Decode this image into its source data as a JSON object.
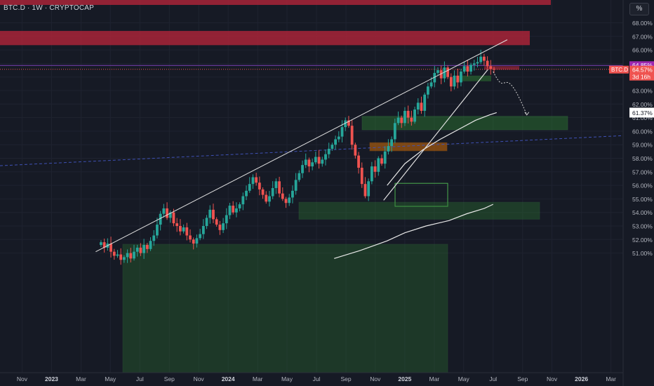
{
  "header": {
    "symbol_label": "BTC.D · 1W · CRYPTOCAP",
    "scale_button": "%"
  },
  "colors": {
    "up": "#26a69a",
    "down": "#ef5350",
    "zone_red": "#b2243a",
    "zone_green": "#2e7d32",
    "zone_orange": "#f57c00",
    "blue_line": "#3f51b5",
    "background": "#161a25"
  },
  "chart_data": {
    "type": "candlestick",
    "ylim": [
      50.4,
      68.6
    ],
    "y_ticks": [
      "68.00%",
      "67.00%",
      "66.00%",
      "65.00%",
      "64.00%",
      "63.00%",
      "62.00%",
      "61.00%",
      "60.00%",
      "59.00%",
      "58.00%",
      "57.00%",
      "56.00%",
      "55.00%",
      "54.00%",
      "53.00%",
      "52.00%",
      "51.00%"
    ],
    "y_tick_values": [
      68,
      67,
      66,
      65,
      64,
      63,
      62,
      61,
      60,
      59,
      58,
      57,
      56,
      55,
      54,
      53,
      52,
      51
    ],
    "x_ticks": [
      "Nov",
      "2023",
      "Mar",
      "May",
      "Jul",
      "Sep",
      "Nov",
      "2024",
      "Mar",
      "May",
      "Jul",
      "Sep",
      "Nov",
      "2025",
      "Mar",
      "May",
      "Jul",
      "Sep",
      "Nov",
      "2026",
      "Mar"
    ],
    "x_tick_times": [
      2022.833,
      2023.0,
      2023.167,
      2023.333,
      2023.5,
      2023.667,
      2023.833,
      2024.0,
      2024.167,
      2024.333,
      2024.5,
      2024.667,
      2024.833,
      2025.0,
      2025.167,
      2025.333,
      2025.5,
      2025.667,
      2025.833,
      2026.0,
      2026.167
    ],
    "x_range": [
      2022.74,
      2026.22
    ],
    "labels": {
      "last": "64.57%",
      "countdown": "3d 16h",
      "overlap": "64.85%",
      "symbol_tag": "BTC.D",
      "ma_value": "61.37%"
    },
    "ma_value": 61.37,
    "last_value": 64.57,
    "purple_level": 64.85,
    "candles_closes": [
      51.8,
      51.4,
      51.7,
      51.1,
      50.8,
      50.9,
      50.5,
      50.7,
      51.0,
      50.6,
      51.1,
      51.4,
      51.0,
      51.6,
      51.3,
      51.9,
      52.3,
      53.1,
      53.9,
      54.3,
      53.6,
      54.0,
      53.2,
      53.0,
      52.6,
      52.9,
      52.3,
      52.0,
      51.7,
      52.1,
      52.4,
      53.0,
      53.6,
      54.2,
      53.5,
      53.1,
      52.7,
      53.2,
      53.8,
      54.5,
      54.0,
      54.3,
      54.6,
      55.2,
      55.6,
      56.1,
      56.6,
      56.2,
      55.7,
      55.3,
      54.8,
      55.2,
      55.8,
      56.3,
      55.4,
      55.0,
      54.7,
      55.1,
      55.6,
      56.4,
      56.9,
      57.5,
      57.9,
      57.4,
      57.7,
      58.1,
      57.6,
      57.9,
      58.3,
      58.7,
      59.0,
      59.4,
      59.6,
      60.3,
      60.8,
      60.4,
      59.0,
      58.2,
      57.3,
      56.1,
      55.2,
      56.3,
      57.4,
      57.0,
      58.0,
      57.6,
      58.5,
      58.9,
      59.4,
      60.6,
      61.0,
      60.6,
      61.5,
      61.0,
      60.7,
      61.6,
      62.1,
      61.5,
      62.7,
      63.3,
      63.6,
      64.3,
      64.5,
      63.9,
      64.7,
      64.0,
      63.3,
      64.1,
      63.6,
      64.4,
      64.8,
      64.4,
      64.9,
      65.0,
      65.1,
      65.5,
      65.2,
      64.8,
      64.6,
      64.57
    ]
  }
}
